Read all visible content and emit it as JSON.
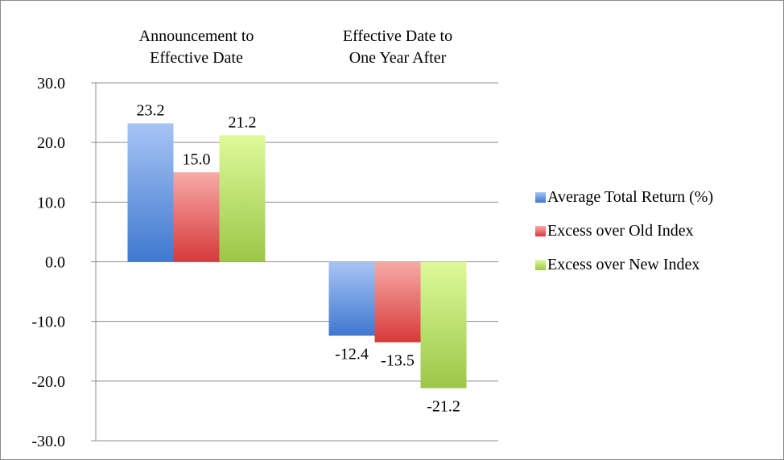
{
  "chart_data": {
    "type": "bar",
    "categories": [
      [
        "Announcement to",
        "Effective Date"
      ],
      [
        "Effective Date to",
        "One Year After"
      ]
    ],
    "series": [
      {
        "name": "Average Total Return (%)",
        "values": [
          23.2,
          -12.4
        ],
        "labels": [
          "23.2",
          "-12.4"
        ],
        "color_top": "#a7c4f4",
        "color_bottom": "#3f78d0"
      },
      {
        "name": "Excess over Old Index",
        "values": [
          15.0,
          -13.5
        ],
        "labels": [
          "15.0",
          "-13.5"
        ],
        "color_top": "#f7aaa7",
        "color_bottom": "#d63a3a"
      },
      {
        "name": "Excess over New Index",
        "values": [
          21.2,
          -21.2
        ],
        "labels": [
          "21.2",
          "-21.2"
        ],
        "color_top": "#ddfa9a",
        "color_bottom": "#9cc648"
      }
    ],
    "ylim": [
      -30,
      30
    ],
    "yticks": [
      "30.0",
      "20.0",
      "10.0",
      "0.0",
      "-10.0",
      "-20.0",
      "-30.0"
    ],
    "ytick_values": [
      30,
      20,
      10,
      0,
      -10,
      -20,
      -30
    ],
    "grid": true,
    "legend_position": "right",
    "category_label_position": "top"
  }
}
